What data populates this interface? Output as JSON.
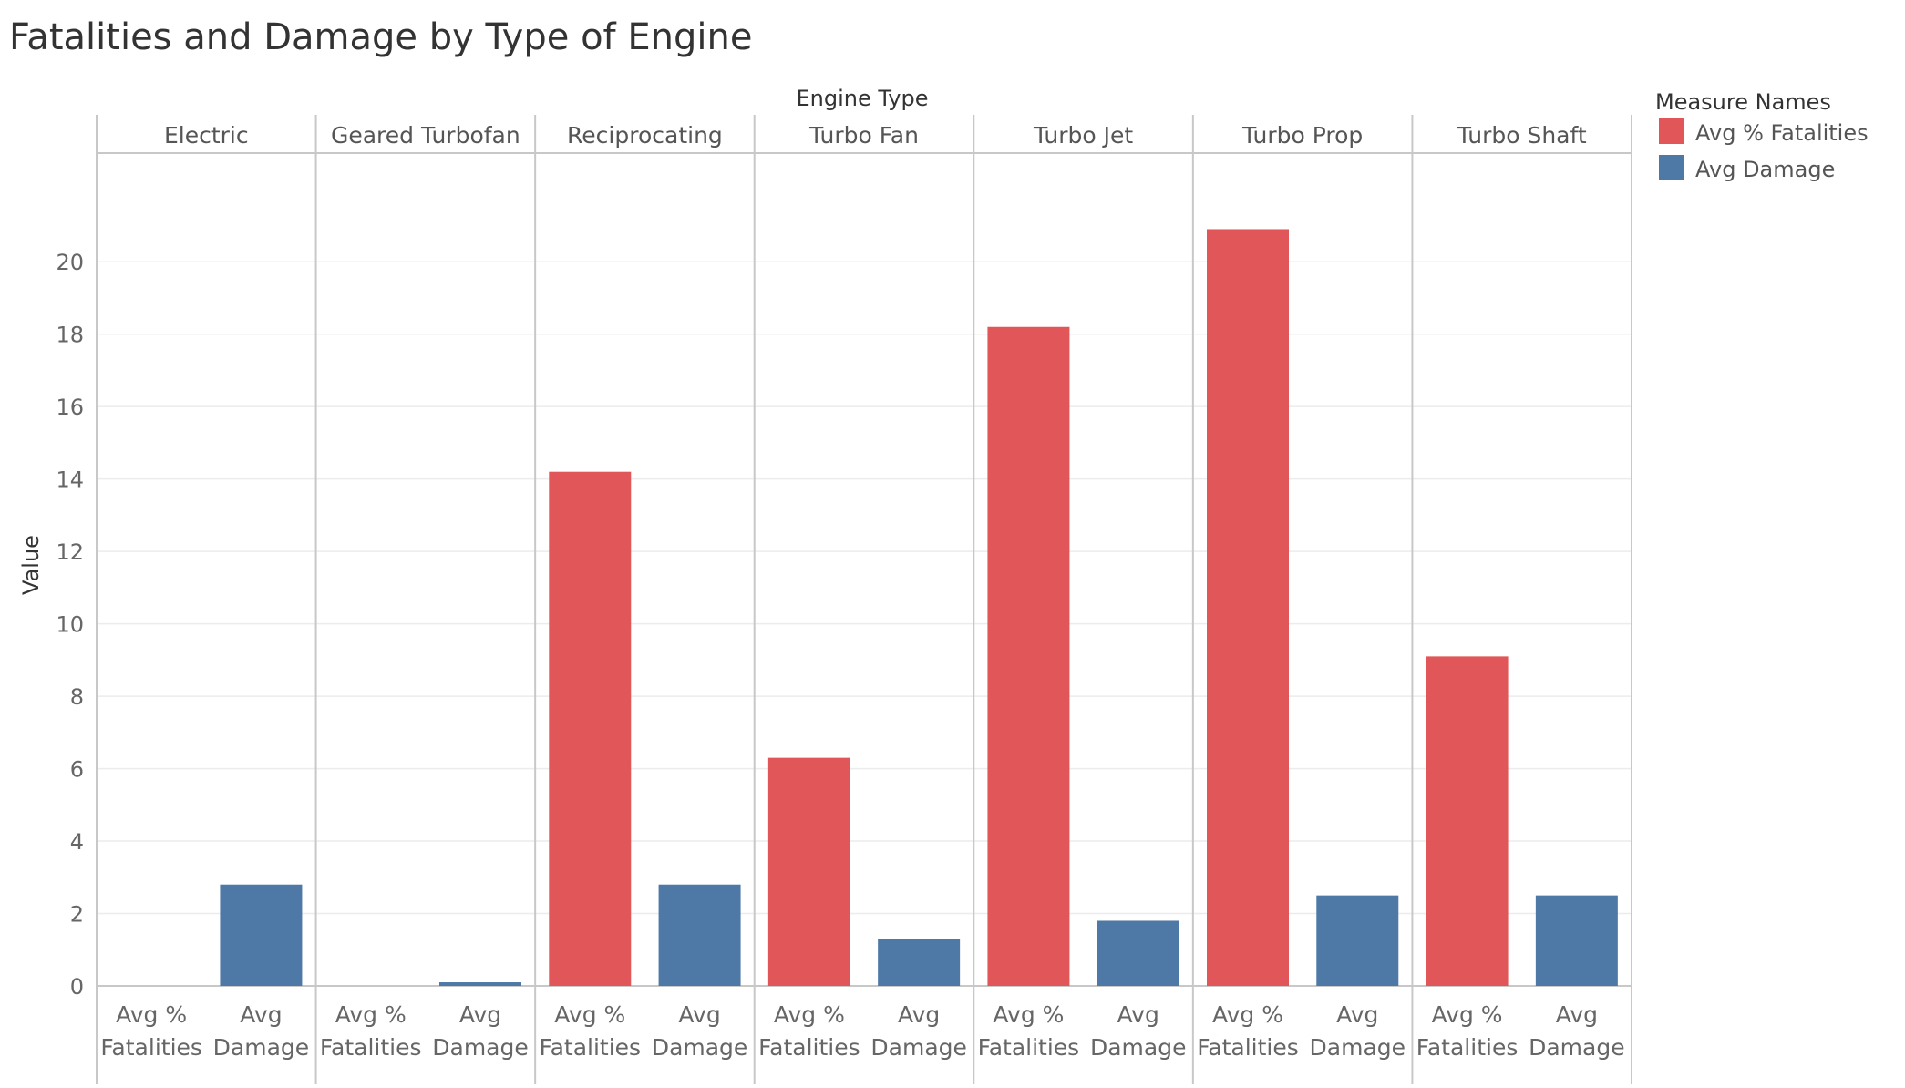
{
  "chart_data": {
    "type": "bar",
    "title": "Fatalities and Damage by Type of Engine",
    "column_header": "Engine Type",
    "ylabel": "Value",
    "ylim": [
      0,
      23
    ],
    "yticks": [
      0,
      2,
      4,
      6,
      8,
      10,
      12,
      14,
      16,
      18,
      20
    ],
    "grid": true,
    "legend": {
      "title": "Measure Names",
      "position": "right",
      "entries": [
        {
          "name": "Avg % Fatalities",
          "color": "#e15759"
        },
        {
          "name": "Avg Damage",
          "color": "#4e79a7"
        }
      ]
    },
    "categories": [
      "Electric",
      "Geared Turbofan",
      "Reciprocating",
      "Turbo Fan",
      "Turbo Jet",
      "Turbo Prop",
      "Turbo Shaft"
    ],
    "measures": [
      {
        "line1": "Avg %",
        "line2": "Fatalities"
      },
      {
        "line1": "Avg",
        "line2": "Damage"
      }
    ],
    "series": [
      {
        "name": "Avg % Fatalities",
        "color": "#e15759",
        "values": [
          0,
          0,
          14.2,
          6.3,
          18.2,
          20.9,
          9.1
        ]
      },
      {
        "name": "Avg Damage",
        "color": "#4e79a7",
        "values": [
          2.8,
          0.1,
          2.8,
          1.3,
          1.8,
          2.5,
          2.5
        ]
      }
    ]
  }
}
